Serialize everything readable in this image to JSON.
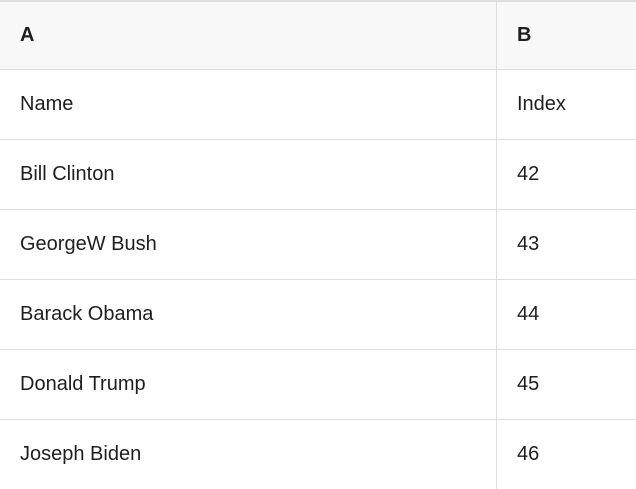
{
  "table": {
    "columns": [
      {
        "label": "A"
      },
      {
        "label": "B"
      }
    ],
    "rows": [
      [
        "Name",
        "Index"
      ],
      [
        "Bill Clinton",
        "42"
      ],
      [
        "GeorgeW Bush",
        "43"
      ],
      [
        "Barack Obama",
        "44"
      ],
      [
        "Donald Trump",
        "45"
      ],
      [
        "Joseph Biden",
        "46"
      ]
    ]
  },
  "colors": {
    "header_background": "#f8f8f8",
    "grid_line": "#dedede",
    "text": "#1e1e1e",
    "cell_background": "#ffffff"
  }
}
